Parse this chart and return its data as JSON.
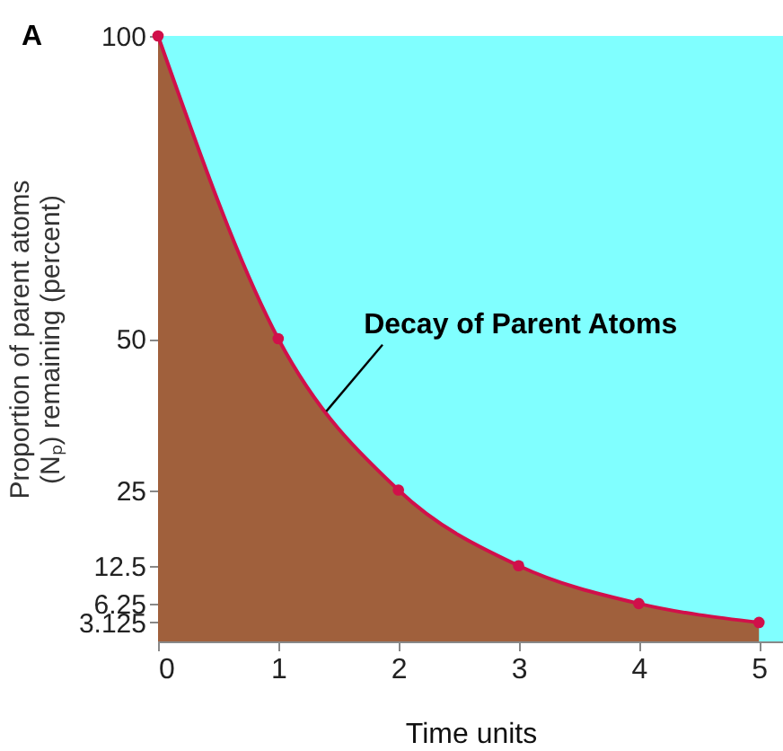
{
  "chart_data": {
    "type": "area",
    "title": "A",
    "xlabel": "Time units",
    "ylabel": "Proportion of parent atoms\n(Nₚ) remaining (percent)",
    "x": [
      0,
      1,
      2,
      3,
      4,
      5
    ],
    "series": [
      {
        "color": "#a0603c",
        "marker": "circle",
        "colors": [
          "#d0104a",
          "#d0104a",
          "#d0104a",
          "#d0104a",
          "#d0104a",
          "#d0104a"
        ],
        "values": [
          100,
          50,
          25,
          12.5,
          6.25,
          3.125
        ]
      }
    ],
    "xlim": [
      0,
      5.2
    ],
    "xticks": [
      0,
      1,
      2,
      3,
      4,
      5
    ],
    "ylim": [
      0,
      100
    ],
    "yticks": [
      3.125,
      6.25,
      12.5,
      25,
      50,
      100
    ],
    "bands": [
      {
        "axis": "x",
        "from": 0,
        "to": 5.2,
        "color": "#80ffff"
      }
    ],
    "annotations": [
      {
        "text": "Decay of Parent Atoms",
        "x": 1.4,
        "y": 38
      }
    ],
    "grid": false
  }
}
